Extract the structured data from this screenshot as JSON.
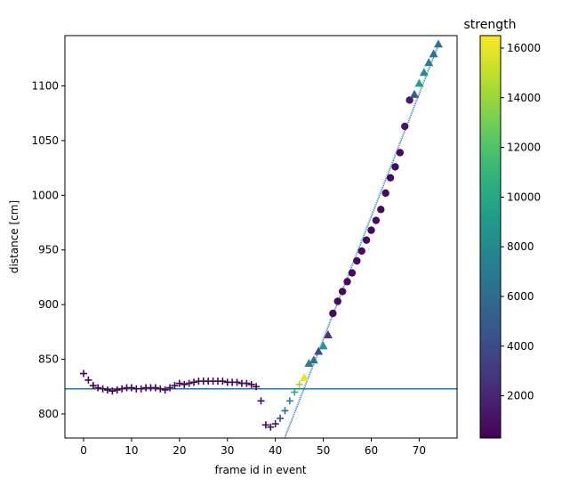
{
  "chart_data": {
    "type": "scatter",
    "title": "",
    "xlabel": "frame id in event",
    "ylabel": "distance [cm]",
    "xlim": [
      -3.9,
      77.9
    ],
    "ylim": [
      778,
      1146
    ],
    "x_ticks": [
      0,
      10,
      20,
      30,
      40,
      50,
      60,
      70
    ],
    "y_ticks": [
      800,
      850,
      900,
      950,
      1000,
      1050,
      1100
    ],
    "grid": false,
    "colorbar": {
      "label": "strength",
      "range": [
        300,
        16500
      ],
      "ticks": [
        2000,
        4000,
        6000,
        8000,
        10000,
        12000,
        14000,
        16000
      ],
      "colormap": "viridis"
    },
    "reference_lines": [
      {
        "kind": "horizontal",
        "y": 823,
        "color": "#1f77b4"
      },
      {
        "kind": "line",
        "x1": 42,
        "y1": 778,
        "x2": 74,
        "y2": 1137,
        "color": "#1f77b4",
        "style": "dense-dashed"
      }
    ],
    "series": [
      {
        "marker": "plus",
        "points": [
          [
            0,
            837,
            500
          ],
          [
            1,
            831,
            500
          ],
          [
            2,
            826,
            500
          ],
          [
            3,
            824,
            500
          ],
          [
            4,
            823,
            500
          ],
          [
            5,
            822,
            500
          ],
          [
            6,
            821,
            500
          ],
          [
            7,
            822,
            500
          ],
          [
            8,
            823,
            500
          ],
          [
            9,
            824,
            500
          ],
          [
            10,
            824,
            500
          ],
          [
            11,
            823,
            500
          ],
          [
            12,
            823,
            500
          ],
          [
            13,
            824,
            500
          ],
          [
            14,
            824,
            500
          ],
          [
            15,
            824,
            500
          ],
          [
            16,
            823,
            500
          ],
          [
            17,
            822,
            500
          ],
          [
            18,
            824,
            500
          ],
          [
            19,
            826,
            500
          ],
          [
            20,
            828,
            500
          ],
          [
            21,
            827,
            500
          ],
          [
            22,
            828,
            500
          ],
          [
            23,
            829,
            500
          ],
          [
            24,
            830,
            500
          ],
          [
            25,
            830,
            500
          ],
          [
            26,
            830,
            500
          ],
          [
            27,
            830,
            500
          ],
          [
            28,
            830,
            500
          ],
          [
            29,
            830,
            500
          ],
          [
            30,
            829,
            500
          ],
          [
            31,
            829,
            500
          ],
          [
            32,
            829,
            500
          ],
          [
            33,
            828,
            500
          ],
          [
            34,
            828,
            500
          ],
          [
            35,
            827,
            500
          ],
          [
            36,
            825,
            500
          ],
          [
            37,
            812,
            600
          ],
          [
            38,
            790,
            900
          ],
          [
            39,
            788,
            1000
          ],
          [
            40,
            791,
            1500
          ],
          [
            41,
            796,
            4500
          ],
          [
            42,
            803,
            6000
          ],
          [
            43,
            812,
            7500
          ],
          [
            44,
            820,
            10000
          ],
          [
            45,
            827,
            14000
          ]
        ]
      },
      {
        "marker": "circle",
        "points": [
          [
            52,
            892,
            700
          ],
          [
            53,
            903,
            700
          ],
          [
            54,
            912,
            800
          ],
          [
            55,
            921,
            700
          ],
          [
            56,
            929,
            700
          ],
          [
            57,
            940,
            700
          ],
          [
            58,
            949,
            700
          ],
          [
            59,
            959,
            700
          ],
          [
            60,
            968,
            700
          ],
          [
            61,
            977,
            800
          ],
          [
            62,
            987,
            700
          ],
          [
            63,
            1002,
            700
          ],
          [
            64,
            1016,
            700
          ],
          [
            65,
            1026,
            700
          ],
          [
            66,
            1039,
            700
          ],
          [
            67,
            1063,
            1200
          ],
          [
            68,
            1087,
            1500
          ]
        ]
      },
      {
        "marker": "triangle",
        "points": [
          [
            46,
            833,
            16000
          ],
          [
            47,
            846,
            7500
          ],
          [
            48,
            849,
            6500
          ],
          [
            49,
            857,
            4000
          ],
          [
            50,
            862,
            9000
          ],
          [
            51,
            872,
            3000
          ],
          [
            69,
            1092,
            5000
          ],
          [
            70,
            1102,
            9500
          ],
          [
            71,
            1112,
            8500
          ],
          [
            72,
            1121,
            7000
          ],
          [
            73,
            1129,
            6500
          ],
          [
            74,
            1138,
            6500
          ]
        ]
      }
    ]
  }
}
